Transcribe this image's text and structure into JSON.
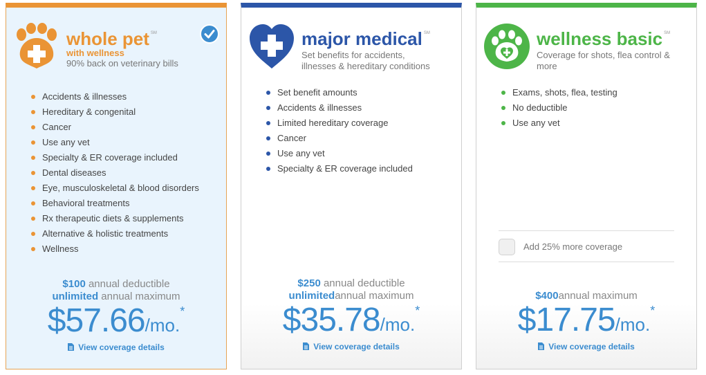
{
  "plans": [
    {
      "id": "whole",
      "title": "whole pet",
      "service_mark": "SM",
      "subtitle_accent": "with wellness",
      "subtitle": "90% back on veterinary bills",
      "selected": true,
      "features": [
        "Accidents & illnesses",
        "Hereditary & congenital",
        "Cancer",
        "Use any vet",
        "Specialty & ER coverage included",
        "Dental diseases",
        "Eye, musculoskeletal & blood disorders",
        "Behavioral treatments",
        "Rx therapeutic diets & supplements",
        "Alternative & holistic treatments",
        "Wellness"
      ],
      "deductible_amount": "$100",
      "deductible_text": " annual deductible",
      "maximum_amount": "unlimited",
      "maximum_text": " annual maximum",
      "price": "$57.66",
      "price_unit": "/mo.",
      "price_mark": "*",
      "details_link": "View coverage details"
    },
    {
      "id": "major",
      "title": "major medical",
      "service_mark": "SM",
      "subtitle": "Set benefits for accidents, illnesses & hereditary conditions",
      "features": [
        "Set benefit amounts",
        "Accidents & illnesses",
        "Limited hereditary coverage",
        "Cancer",
        "Use any vet",
        "Specialty & ER coverage included"
      ],
      "deductible_amount": "$250",
      "deductible_text": " annual deductible",
      "maximum_amount": "unlimited",
      "maximum_text": "annual maximum",
      "price": "$35.78",
      "price_unit": "/mo.",
      "price_mark": "*",
      "details_link": "View coverage details"
    },
    {
      "id": "wellness",
      "title": "wellness basic",
      "service_mark": "SM",
      "subtitle": "Coverage for shots, flea control & more",
      "features": [
        "Exams, shots, flea, testing",
        "No deductible",
        "Use any vet"
      ],
      "addon_label": "Add 25% more coverage",
      "maximum_amount": "$400",
      "maximum_text": "annual maximum",
      "price": "$17.75",
      "price_unit": "/mo.",
      "price_mark": "*",
      "details_link": "View coverage details"
    }
  ],
  "icons": {
    "whole_logo": "paw-plus-icon",
    "major_logo": "heart-cross-icon",
    "wellness_logo": "paw-heart-icon",
    "selected_badge": "checkmark-icon",
    "details_icon": "document-icon"
  },
  "colors": {
    "whole_accent": "#ea9435",
    "major_accent": "#2c56a8",
    "wellness_accent": "#4db548",
    "price_blue": "#3b8ccf",
    "selected_background": "#e9f4fd"
  }
}
